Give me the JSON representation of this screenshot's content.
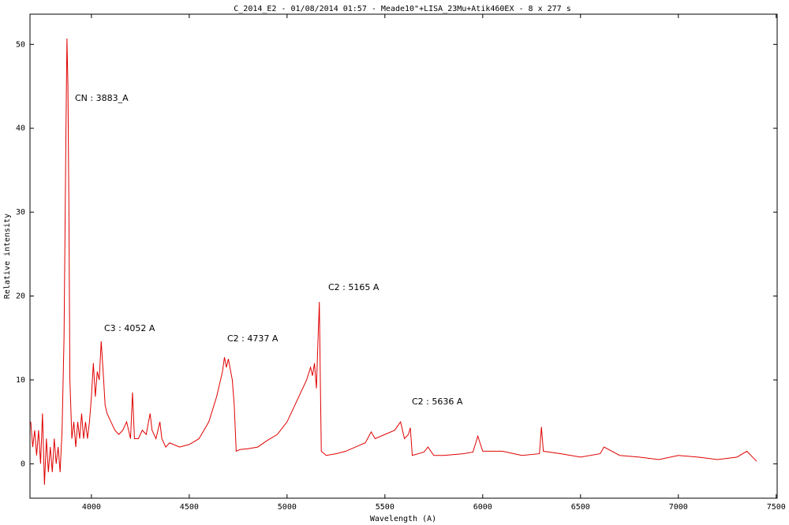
{
  "chart_data": {
    "type": "line",
    "title": "C_2014_E2 - 01/08/2014 01:57 - Meade10\"+LISA_23Mu+Atik460EX - 8 x 277 s",
    "x_label": "Wavelength (A)",
    "y_label": "Relative intensity",
    "annotations": [
      "CN : 3883_A",
      "C3 : 4052 A",
      "C2 : 4737 A",
      "C2 : 5165 A",
      "C2 : 5636 A"
    ],
    "color": "#e00000",
    "grid": false,
    "xlim": [
      3686,
      7505
    ],
    "ylim": [
      -4.1,
      53.6
    ],
    "xticks": [
      4000,
      4500,
      5000,
      5500,
      6000,
      6500,
      7000,
      7500
    ],
    "yticks": [
      0,
      10,
      20,
      30,
      40,
      50
    ],
    "x": [
      3690,
      3700,
      3710,
      3720,
      3730,
      3740,
      3750,
      3760,
      3770,
      3780,
      3790,
      3800,
      3810,
      3820,
      3830,
      3840,
      3850,
      3860,
      3870,
      3875,
      3880,
      3885,
      3890,
      3900,
      3910,
      3920,
      3930,
      3940,
      3950,
      3960,
      3970,
      3980,
      3990,
      4000,
      4010,
      4020,
      4030,
      4040,
      4050,
      4060,
      4070,
      4080,
      4100,
      4120,
      4140,
      4160,
      4180,
      4200,
      4210,
      4220,
      4240,
      4260,
      4280,
      4300,
      4310,
      4330,
      4350,
      4360,
      4380,
      4400,
      4450,
      4500,
      4550,
      4600,
      4640,
      4670,
      4680,
      4690,
      4700,
      4720,
      4730,
      4740,
      4760,
      4800,
      4850,
      4900,
      4950,
      5000,
      5050,
      5100,
      5120,
      5130,
      5140,
      5150,
      5160,
      5165,
      5170,
      5175,
      5200,
      5250,
      5300,
      5350,
      5400,
      5430,
      5450,
      5500,
      5550,
      5580,
      5600,
      5620,
      5630,
      5640,
      5700,
      5720,
      5750,
      5800,
      5900,
      5950,
      5975,
      6000,
      6100,
      6200,
      6290,
      6300,
      6310,
      6400,
      6500,
      6600,
      6620,
      6700,
      6800,
      6900,
      7000,
      7100,
      7200,
      7300,
      7350,
      7400
    ],
    "values": [
      5,
      2,
      4,
      1,
      4,
      0,
      6,
      -2.5,
      3,
      -1,
      2,
      -1,
      3,
      0,
      2,
      -1,
      4,
      15,
      40,
      50.7,
      45,
      30,
      10,
      3,
      5,
      2,
      5,
      3,
      6,
      3,
      5,
      3,
      5,
      8,
      12,
      8,
      11,
      10,
      14.6,
      11,
      7,
      6,
      5,
      4,
      3.5,
      4,
      5,
      3,
      8.5,
      3,
      3,
      4,
      3.5,
      6,
      4,
      3,
      5,
      3,
      2,
      2.5,
      2,
      2.3,
      3,
      5,
      8,
      11,
      12.7,
      11.5,
      12.5,
      10,
      7,
      1.5,
      1.7,
      1.8,
      2,
      2.8,
      3.5,
      5,
      7.5,
      10,
      11.5,
      10.5,
      12,
      9,
      16,
      19.3,
      10,
      1.5,
      1,
      1.2,
      1.5,
      2,
      2.5,
      3.8,
      3,
      3.5,
      4,
      5,
      3,
      3.5,
      4.3,
      1,
      1.4,
      2,
      1,
      1,
      1.2,
      1.4,
      3.3,
      1.5,
      1.5,
      1,
      1.2,
      4.4,
      1.5,
      1.2,
      0.8,
      1.2,
      2,
      1,
      0.8,
      0.5,
      1,
      0.8,
      0.5,
      0.8,
      1.5,
      0.3
    ]
  }
}
